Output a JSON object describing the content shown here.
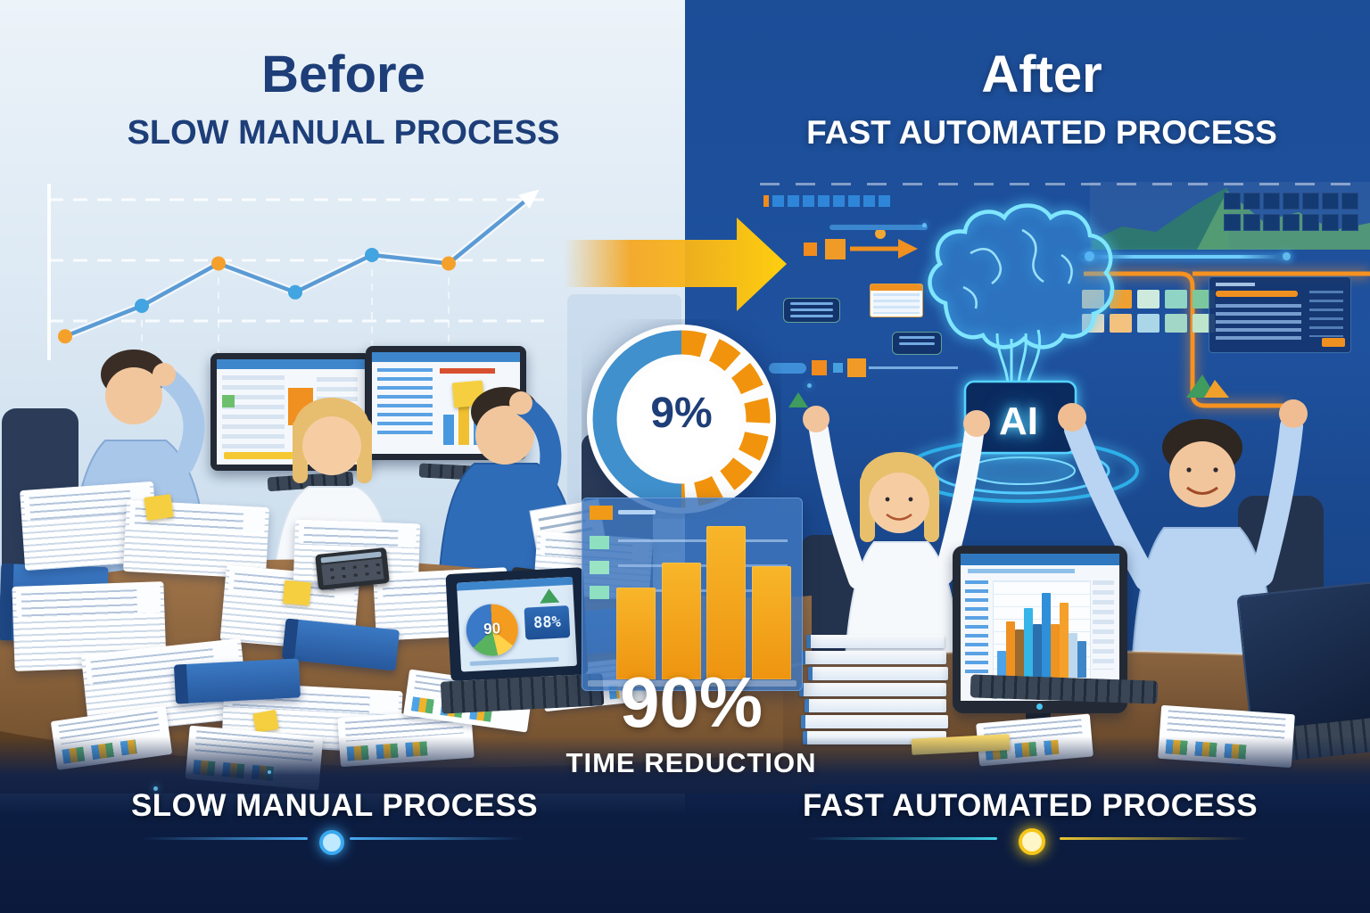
{
  "before": {
    "title": "Before",
    "subtitle": "SLOW MANUAL PROCESS",
    "caption": "SLOW MANUAL PROCESS"
  },
  "after": {
    "title": "After",
    "subtitle": "FAST AUTOMATED PROCESS",
    "caption": "FAST AUTOMATED PROCESS"
  },
  "center": {
    "gauge_value": "9%",
    "big_value": "90%",
    "big_label": "TIME REDUCTION"
  },
  "ai": {
    "label": "AI"
  },
  "laptop": {
    "pie_label": "90",
    "counter": "88%"
  },
  "colors": {
    "navy_text": "#1d3e78",
    "accent_orange": "#f1930c",
    "accent_yellow": "#ffd23f",
    "accent_blue": "#3e8fd0",
    "glow_cyan": "#5fd8ff",
    "dark_band": "#0c1d42"
  },
  "chart_data": [
    {
      "id": "before_trend_line",
      "type": "line",
      "x": [
        1,
        2,
        3,
        4,
        5,
        6,
        7
      ],
      "values": [
        12,
        30,
        55,
        38,
        60,
        55,
        92
      ],
      "point_colors": [
        "#f5a02a",
        "#42a4e0",
        "#f5a02a",
        "#42a4e0",
        "#42a4e0",
        "#f5a02a",
        "#ffffff"
      ],
      "line_color": "#5b9bd5",
      "grid": "white-dashed",
      "note": "decorative rising zigzag trend with arrow tip, left background"
    },
    {
      "id": "center_orange_bars",
      "type": "bar",
      "values": [
        55,
        70,
        92,
        68
      ],
      "bar_color": "#f5a112",
      "panel_color": "#3e76bc"
    },
    {
      "id": "after_monitor_bars",
      "type": "bar",
      "values": [
        28,
        58,
        50,
        72,
        56,
        88,
        56,
        78,
        46,
        38
      ],
      "colors": [
        "#4da3e8",
        "#f09020",
        "#9a6b2e",
        "#35b5e8",
        "#2a6fae",
        "#2f8fd8",
        "#ef9420",
        "#f5a02a",
        "#bcd8ee",
        "#3e86c8"
      ]
    },
    {
      "id": "laptop_pie",
      "type": "pie",
      "segments": [
        {
          "color": "#f39c1f",
          "deg": 130
        },
        {
          "color": "#ffd24a",
          "deg": 40
        },
        {
          "color": "#59b35e",
          "deg": 60
        },
        {
          "color": "#3a78c8",
          "deg": 130
        }
      ],
      "center_label": "90"
    }
  ]
}
